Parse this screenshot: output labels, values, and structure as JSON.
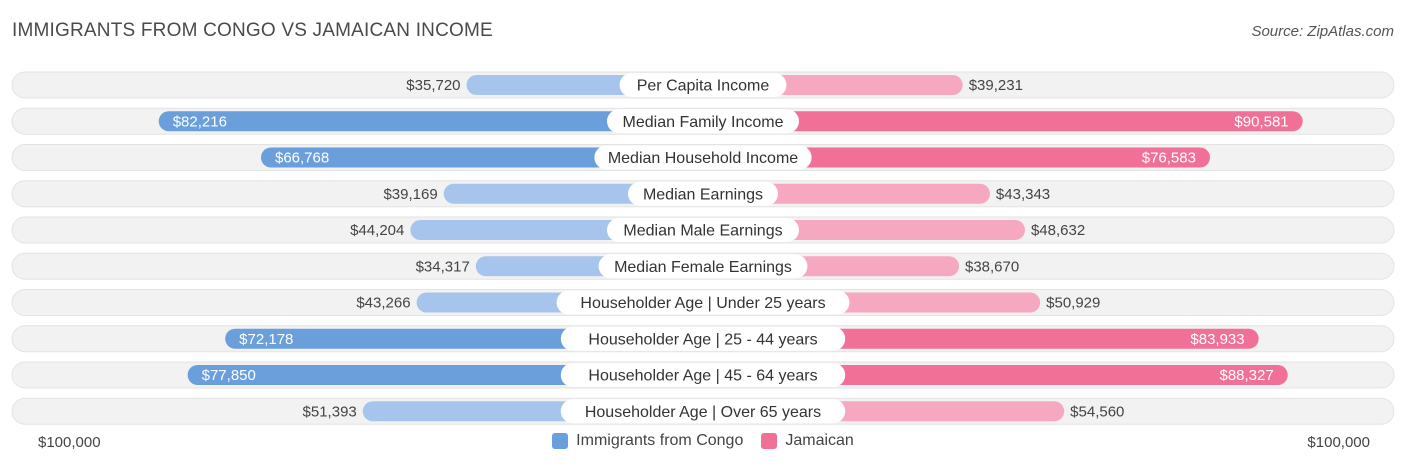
{
  "header": {
    "title": "IMMIGRANTS FROM CONGO VS JAMAICAN INCOME",
    "source": "Source: ZipAtlas.com"
  },
  "colors": {
    "left_strong": "#6a9fdb",
    "left_light": "#a7c5ec",
    "right_strong": "#f07098",
    "right_light": "#f6a8c1",
    "track": "#f1f1f1"
  },
  "chart_data": {
    "type": "bar",
    "orientation": "horizontal-diverging",
    "title": "IMMIGRANTS FROM CONGO VS JAMAICAN INCOME",
    "xlim": [
      0,
      100000
    ],
    "axis_min_label": "$100,000",
    "axis_max_label": "$100,000",
    "categories": [
      "Per Capita Income",
      "Median Family Income",
      "Median Household Income",
      "Median Earnings",
      "Median Male Earnings",
      "Median Female Earnings",
      "Householder Age | Under 25 years",
      "Householder Age | 25 - 44 years",
      "Householder Age | 45 - 64 years",
      "Householder Age | Over 65 years"
    ],
    "series": [
      {
        "name": "Immigrants from Congo",
        "values": [
          35720,
          82216,
          66768,
          39169,
          44204,
          34317,
          43266,
          72178,
          77850,
          51393
        ],
        "labels": [
          "$35,720",
          "$82,216",
          "$66,768",
          "$39,169",
          "$44,204",
          "$34,317",
          "$43,266",
          "$72,178",
          "$77,850",
          "$51,393"
        ]
      },
      {
        "name": "Jamaican",
        "values": [
          39231,
          90581,
          76583,
          43343,
          48632,
          38670,
          50929,
          83933,
          88327,
          54560
        ],
        "labels": [
          "$39,231",
          "$90,581",
          "$76,583",
          "$43,343",
          "$48,632",
          "$38,670",
          "$50,929",
          "$83,933",
          "$88,327",
          "$54,560"
        ]
      }
    ],
    "legend": [
      "Immigrants from Congo",
      "Jamaican"
    ],
    "legend_position": "bottom-center"
  }
}
